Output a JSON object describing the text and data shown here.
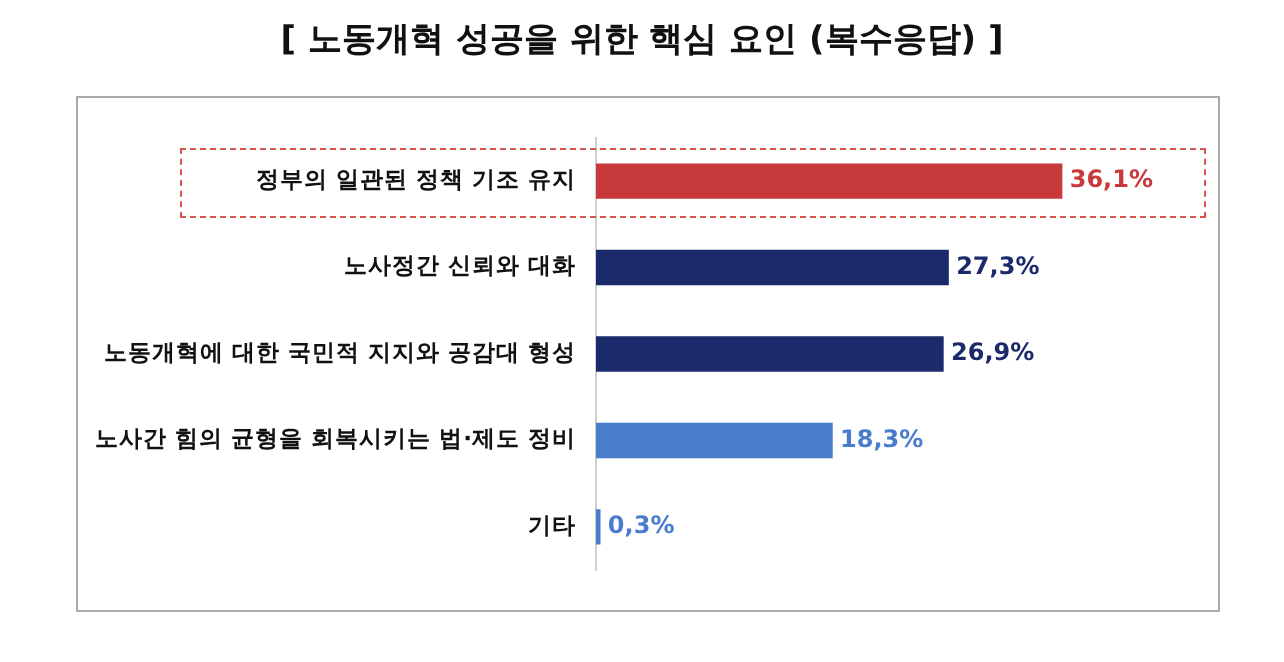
{
  "chart_data": {
    "type": "bar",
    "orientation": "horizontal",
    "title": "[ 노동개혁 성공을 위한 핵심 요인 (복수응답) ]",
    "categories": [
      "정부의 일관된 정책 기조 유지",
      "노사정간 신뢰와 대화",
      "노동개혁에 대한 국민적 지지와 공감대 형성",
      "노사간 힘의 균형을 회복시키는 법·제도 정비",
      "기타"
    ],
    "values": [
      36.1,
      27.3,
      26.9,
      18.3,
      0.3
    ],
    "colors": [
      "#c8393c",
      "#1b2a6b",
      "#1b2a6b",
      "#4a7ccc",
      "#4a7ccc"
    ],
    "value_labels": [
      "36,1%",
      "27,3%",
      "26,9%",
      "18,3%",
      "0,3%"
    ],
    "grid": false,
    "legend": false
  }
}
